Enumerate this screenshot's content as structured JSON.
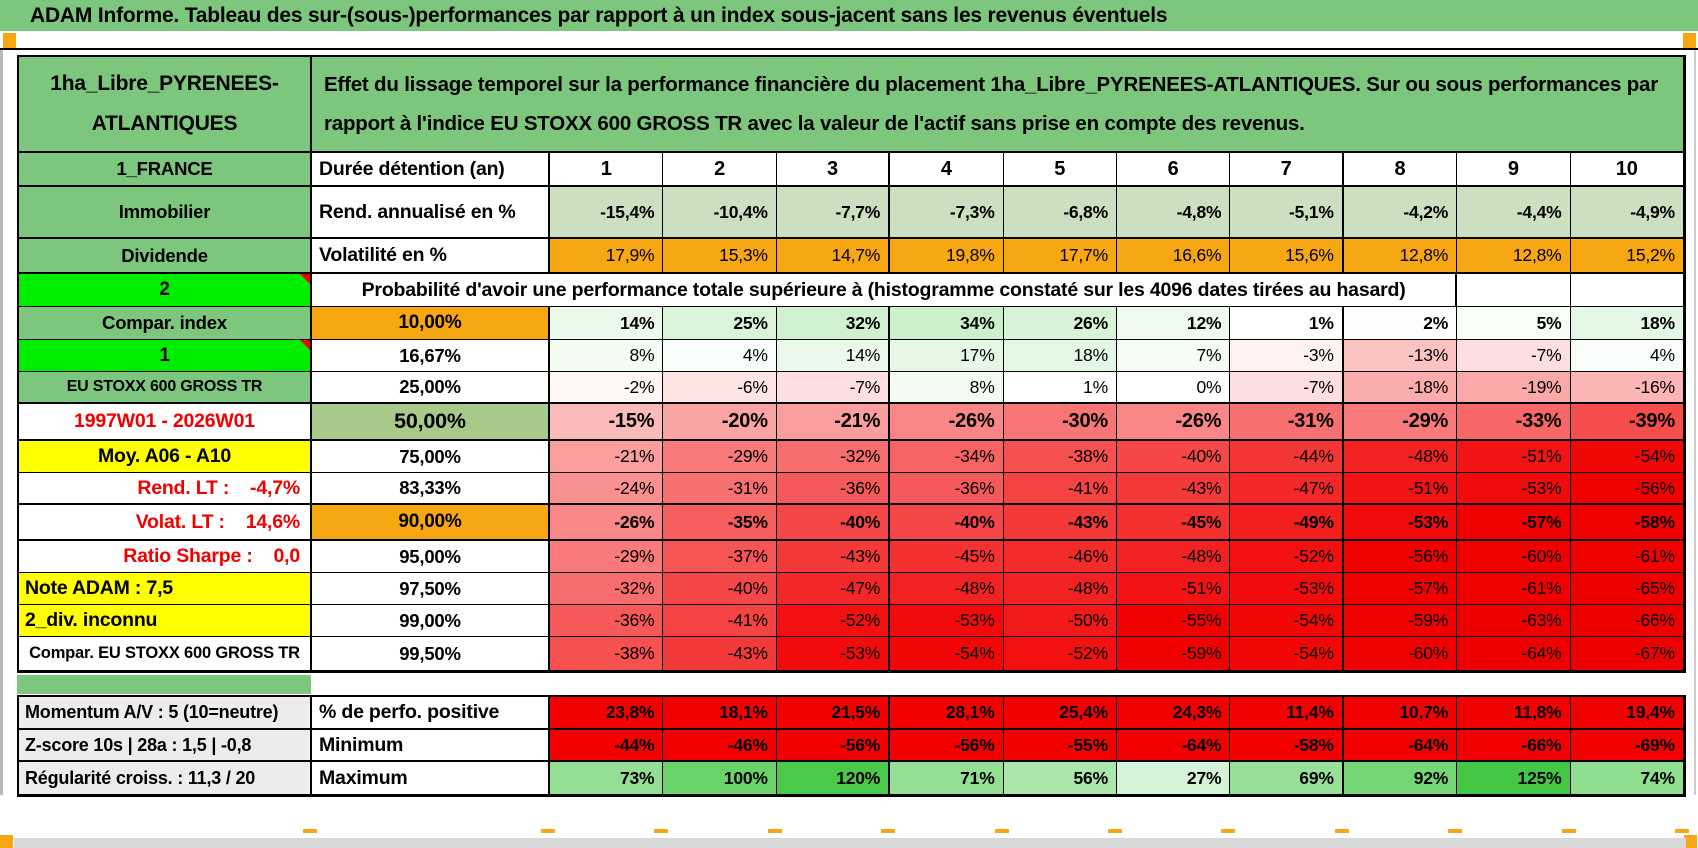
{
  "title": "ADAM Informe. Tableau des sur-(sous-)performances par rapport à un index sous-jacent sans les revenus éventuels",
  "header": {
    "asset_name": "1ha_Libre_PYRENEES-ATLANTIQUES",
    "description": "Effet du lissage temporel sur la performance financière du placement 1ha_Libre_PYRENEES-ATLANTIQUES. Sur ou sous performances par rapport à l'indice EU STOXX 600 GROSS TR avec la valeur de l'actif sans prise en compte des revenus."
  },
  "columns": [
    "1",
    "2",
    "3",
    "4",
    "5",
    "6",
    "7",
    "8",
    "9",
    "10"
  ],
  "colors": {
    "green": "#7cc77d",
    "bright_green": "#00ee00",
    "orange": "#f7a711",
    "yellow": "#ffff00",
    "sage": "#ccdfc1",
    "mid_green": "#a9c98b",
    "full_red": "#f30000",
    "gray_label": "#ececec",
    "red_text": "#f00000"
  },
  "table": {
    "rows": [
      {
        "a": "1_FRANCE",
        "a_style": "green",
        "b": "Durée détention (an)",
        "b_style": "text-label",
        "kind": "years",
        "v_bold": true,
        "values": [
          "1",
          "2",
          "3",
          "4",
          "5",
          "6",
          "7",
          "8",
          "9",
          "10"
        ]
      },
      {
        "a": "Immobilier",
        "a_style": "green",
        "b": "Rend. annualisé en %",
        "b_style": "text-label",
        "kind": "rend",
        "v_bold": true,
        "values": [
          "-15,4%",
          "-10,4%",
          "-7,7%",
          "-7,3%",
          "-6,8%",
          "-4,8%",
          "-5,1%",
          "-4,2%",
          "-4,4%",
          "-4,9%"
        ]
      },
      {
        "a": "Dividende",
        "a_style": "green",
        "b": "Volatilité en %",
        "b_style": "text-label",
        "kind": "vol",
        "values": [
          "17,9%",
          "15,3%",
          "14,7%",
          "19,8%",
          "17,7%",
          "16,6%",
          "15,6%",
          "12,8%",
          "12,8%",
          "15,2%"
        ]
      },
      {
        "a": "2",
        "a_style": "bright",
        "a_note": true,
        "b": "Probabilité d'avoir une performance totale supérieure à (histogramme constaté sur les 4096 dates tirées au hasard)",
        "b_style": "prob-span",
        "kind": "empty",
        "values": [
          "",
          ""
        ]
      },
      {
        "a": "Compar. index",
        "a_style": "green",
        "b": "10,00%",
        "b_style": "orange",
        "kind": "prob",
        "v_bold": true,
        "values": [
          "14%",
          "25%",
          "32%",
          "34%",
          "26%",
          "12%",
          "1%",
          "2%",
          "5%",
          "18%"
        ]
      },
      {
        "a": "1",
        "a_style": "bright",
        "a_note": true,
        "b": "16,67%",
        "b_style": "num",
        "kind": "prob",
        "values": [
          "8%",
          "4%",
          "14%",
          "17%",
          "18%",
          "7%",
          "-3%",
          "-13%",
          "-7%",
          "4%"
        ]
      },
      {
        "a": "EU STOXX 600 GROSS TR",
        "a_style": "green-small",
        "b": "25,00%",
        "b_style": "num",
        "kind": "prob",
        "values": [
          "-2%",
          "-6%",
          "-7%",
          "8%",
          "1%",
          "0%",
          "-7%",
          "-18%",
          "-19%",
          "-16%"
        ]
      },
      {
        "a": "1997W01 - 2026W01",
        "a_style": "red-center",
        "b": "50,00%",
        "b_style": "green-big",
        "kind": "prob",
        "v_bold": true,
        "v_big": true,
        "values": [
          "-15%",
          "-20%",
          "-21%",
          "-26%",
          "-30%",
          "-26%",
          "-31%",
          "-29%",
          "-33%",
          "-39%"
        ]
      },
      {
        "a": "Moy. A06 - A10",
        "a_style": "yellow-center",
        "b": "75,00%",
        "b_style": "num",
        "kind": "prob",
        "values": [
          "-21%",
          "-29%",
          "-32%",
          "-34%",
          "-38%",
          "-40%",
          "-44%",
          "-48%",
          "-51%",
          "-54%"
        ]
      },
      {
        "a": "Rend. LT :    -4,7%",
        "a_style": "red-right",
        "b": "83,33%",
        "b_style": "num",
        "kind": "prob",
        "values": [
          "-24%",
          "-31%",
          "-36%",
          "-36%",
          "-41%",
          "-43%",
          "-47%",
          "-51%",
          "-53%",
          "-56%"
        ]
      },
      {
        "a": "Volat. LT :    14,6%",
        "a_style": "red-right",
        "b": "90,00%",
        "b_style": "orange",
        "kind": "prob",
        "v_bold": true,
        "values": [
          "-26%",
          "-35%",
          "-40%",
          "-40%",
          "-43%",
          "-45%",
          "-49%",
          "-53%",
          "-57%",
          "-58%"
        ]
      },
      {
        "a": "Ratio Sharpe :    0,0",
        "a_style": "red-right",
        "b": "95,00%",
        "b_style": "num",
        "kind": "prob",
        "values": [
          "-29%",
          "-37%",
          "-43%",
          "-45%",
          "-46%",
          "-48%",
          "-52%",
          "-56%",
          "-60%",
          "-61%"
        ]
      },
      {
        "a": "Note ADAM : 7,5",
        "a_style": "yellow-left",
        "b": "97,50%",
        "b_style": "num",
        "kind": "prob",
        "values": [
          "-32%",
          "-40%",
          "-47%",
          "-48%",
          "-48%",
          "-51%",
          "-53%",
          "-57%",
          "-61%",
          "-65%"
        ]
      },
      {
        "a": "2_div. inconnu",
        "a_style": "yellow-left",
        "b": "99,00%",
        "b_style": "num",
        "kind": "prob",
        "values": [
          "-36%",
          "-41%",
          "-52%",
          "-53%",
          "-50%",
          "-55%",
          "-54%",
          "-59%",
          "-63%",
          "-66%"
        ]
      },
      {
        "a": "Compar. EU STOXX 600 GROSS TR",
        "a_style": "white-small",
        "b": "99,50%",
        "b_style": "num",
        "kind": "prob",
        "values": [
          "-38%",
          "-43%",
          "-53%",
          "-54%",
          "-52%",
          "-59%",
          "-54%",
          "-60%",
          "-64%",
          "-67%"
        ]
      }
    ]
  },
  "bottom_table": {
    "rows": [
      {
        "a": "Momentum A/V : 5 (10=neutre)",
        "a_style": "gray",
        "b": "% de perfo. positive",
        "b_style": "text-label",
        "kind": "red",
        "v_bold": true,
        "values": [
          "23,8%",
          "18,1%",
          "21,5%",
          "28,1%",
          "25,4%",
          "24,3%",
          "11,4%",
          "10,7%",
          "11,8%",
          "19,4%"
        ]
      },
      {
        "a": "Z-score 10s | 28a : 1,5 | -0,8",
        "a_style": "gray",
        "b": "Minimum",
        "b_style": "text-label",
        "kind": "red",
        "v_bold": true,
        "values": [
          "-44%",
          "-46%",
          "-56%",
          "-56%",
          "-55%",
          "-64%",
          "-58%",
          "-64%",
          "-66%",
          "-69%"
        ]
      },
      {
        "a": "Régularité croiss. : 11,3 / 20",
        "a_style": "gray",
        "b": "Maximum",
        "b_style": "text-label",
        "kind": "max",
        "v_bold": true,
        "values": [
          "73%",
          "100%",
          "120%",
          "71%",
          "56%",
          "27%",
          "69%",
          "92%",
          "125%",
          "74%"
        ]
      }
    ]
  }
}
